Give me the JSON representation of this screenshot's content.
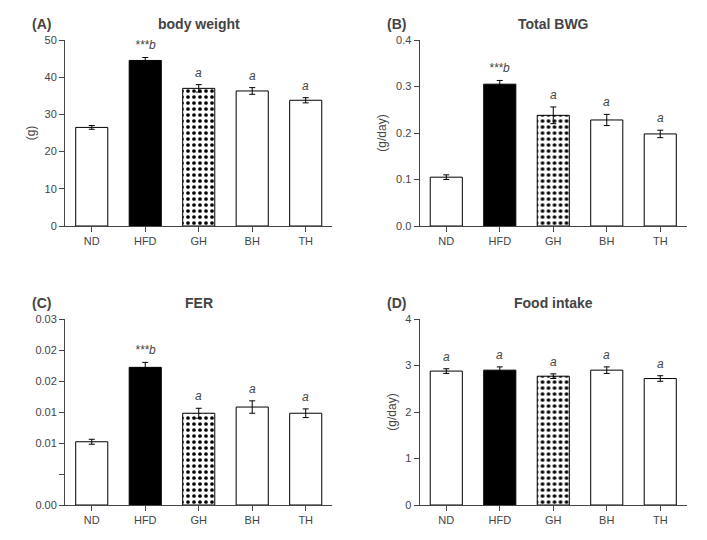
{
  "chart_data": [
    {
      "type": "bar",
      "panel_label": "(A)",
      "title": "body weight",
      "ylabel": "(g)",
      "categories": [
        "ND",
        "HFD",
        "GH",
        "BH",
        "TH"
      ],
      "values": [
        26.5,
        44.5,
        37.0,
        36.3,
        33.8
      ],
      "errors": [
        0.5,
        0.8,
        1.0,
        0.9,
        0.7
      ],
      "colors": [
        "white",
        "black",
        "black",
        "white",
        "white"
      ],
      "ylim": [
        0,
        50
      ],
      "yticks": [
        0,
        10,
        20,
        30,
        40,
        50
      ],
      "annotations": [
        {
          "category": "HFD",
          "text": "***b"
        },
        {
          "category": "GH",
          "text": "a"
        },
        {
          "category": "BH",
          "text": "a"
        },
        {
          "category": "TH",
          "text": "a"
        }
      ],
      "grid": false
    },
    {
      "type": "bar",
      "panel_label": "(B)",
      "title": "Total BWG",
      "ylabel": "(g/day)",
      "categories": [
        "ND",
        "HFD",
        "GH",
        "BH",
        "TH"
      ],
      "values": [
        0.105,
        0.305,
        0.238,
        0.228,
        0.198
      ],
      "errors": [
        0.005,
        0.008,
        0.018,
        0.012,
        0.008
      ],
      "colors": [
        "white",
        "black",
        "black",
        "white",
        "white"
      ],
      "ylim": [
        0.0,
        0.4
      ],
      "yticks": [
        {
          "value": 0.0,
          "label": "0.0"
        },
        0.1,
        0.2,
        0.3,
        0.4
      ],
      "annotations": [
        {
          "category": "HFD",
          "text": "***b"
        },
        {
          "category": "GH",
          "text": "a"
        },
        {
          "category": "BH",
          "text": "a"
        },
        {
          "category": "TH",
          "text": "a"
        }
      ],
      "grid": false
    },
    {
      "type": "bar",
      "panel_label": "(C)",
      "title": "FER",
      "categories": [
        "ND",
        "HFD",
        "GH",
        "BH",
        "TH"
      ],
      "values": [
        0.0102,
        0.0222,
        0.0148,
        0.0158,
        0.0148
      ],
      "errors": [
        0.0004,
        0.0008,
        0.0008,
        0.001,
        0.0007
      ],
      "colors": [
        "white",
        "black",
        "black",
        "white",
        "white"
      ],
      "ylim": [
        0.0,
        0.03
      ],
      "yticks": [
        {
          "value": 0.0,
          "label": "0.00"
        },
        {
          "value": 0.005,
          "label": null
        },
        0.01,
        {
          "value": 0.015,
          "label": "0.01"
        },
        0.02,
        {
          "value": 0.025,
          "label": "0.02"
        },
        0.03
      ],
      "annotations": [
        {
          "category": "HFD",
          "text": "***b"
        },
        {
          "category": "GH",
          "text": "a"
        },
        {
          "category": "BH",
          "text": "a"
        },
        {
          "category": "TH",
          "text": "a"
        }
      ],
      "grid": false
    },
    {
      "type": "bar",
      "panel_label": "(D)",
      "title": "Food intake",
      "ylabel": "(g/day)",
      "categories": [
        "ND",
        "HFD",
        "GH",
        "BH",
        "TH"
      ],
      "values": [
        2.88,
        2.9,
        2.77,
        2.9,
        2.72
      ],
      "errors": [
        0.05,
        0.07,
        0.05,
        0.07,
        0.06
      ],
      "colors": [
        "white",
        "black",
        "black",
        "white",
        "white"
      ],
      "ylim": [
        0,
        4
      ],
      "yticks": [
        0,
        1,
        2,
        3,
        4
      ],
      "annotations": [
        {
          "category": "ND",
          "text": "a"
        },
        {
          "category": "HFD",
          "text": "a"
        },
        {
          "category": "GH",
          "text": "a"
        },
        {
          "category": "BH",
          "text": "a"
        },
        {
          "category": "TH",
          "text": "a"
        }
      ],
      "grid": false
    }
  ]
}
